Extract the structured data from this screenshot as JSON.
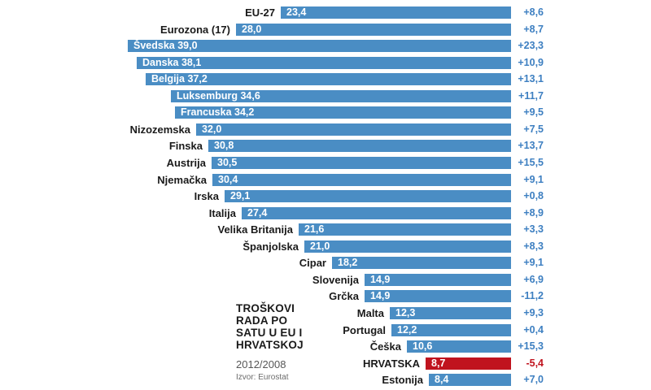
{
  "title_block": {
    "title_lines": [
      "TROŠKOVI",
      "RADA PO",
      "SATU U EU I",
      "HRVATSKOJ"
    ],
    "period": "2012/2008",
    "source": "Izvor: Eurostat"
  },
  "colors": {
    "bar_blue": "#4a8dc4",
    "bar_red": "#c0131e",
    "change_blue": "#3d7fc1",
    "change_red": "#c0131e",
    "label_dark": "#1a1a1a"
  },
  "chart_data": {
    "type": "bar",
    "orientation": "horizontal-right-anchored",
    "title": "TROŠKOVI RADA PO SATU U EU I HRVATSKOJ",
    "period": "2012/2008",
    "source": "Izvor: Eurostat",
    "value_axis_range": [
      0,
      39.0
    ],
    "grid": false,
    "legend": false,
    "rows": [
      {
        "label": "EU-27",
        "value": 23.4,
        "value_text": "23,4",
        "change": 8.6,
        "change_text": "+8,6",
        "label_inside": false,
        "highlight": false
      },
      {
        "label": "Eurozona (17)",
        "value": 28.0,
        "value_text": "28,0",
        "change": 8.7,
        "change_text": "+8,7",
        "label_inside": false,
        "highlight": false
      },
      {
        "label": "Švedska",
        "value": 39.0,
        "value_text": "39,0",
        "change": 23.3,
        "change_text": "+23,3",
        "label_inside": true,
        "highlight": false
      },
      {
        "label": "Danska",
        "value": 38.1,
        "value_text": "38,1",
        "change": 10.9,
        "change_text": "+10,9",
        "label_inside": true,
        "highlight": false
      },
      {
        "label": "Belgija",
        "value": 37.2,
        "value_text": "37,2",
        "change": 13.1,
        "change_text": "+13,1",
        "label_inside": true,
        "highlight": false
      },
      {
        "label": "Luksemburg",
        "value": 34.6,
        "value_text": "34,6",
        "change": 11.7,
        "change_text": "+11,7",
        "label_inside": true,
        "highlight": false
      },
      {
        "label": "Francuska",
        "value": 34.2,
        "value_text": "34,2",
        "change": 9.5,
        "change_text": "+9,5",
        "label_inside": true,
        "highlight": false
      },
      {
        "label": "Nizozemska",
        "value": 32.0,
        "value_text": "32,0",
        "change": 7.5,
        "change_text": "+7,5",
        "label_inside": false,
        "highlight": false
      },
      {
        "label": "Finska",
        "value": 30.8,
        "value_text": "30,8",
        "change": 13.7,
        "change_text": "+13,7",
        "label_inside": false,
        "highlight": false
      },
      {
        "label": "Austrija",
        "value": 30.5,
        "value_text": "30,5",
        "change": 15.5,
        "change_text": "+15,5",
        "label_inside": false,
        "highlight": false
      },
      {
        "label": "Njemačka",
        "value": 30.4,
        "value_text": "30,4",
        "change": 9.1,
        "change_text": "+9,1",
        "label_inside": false,
        "highlight": false
      },
      {
        "label": "Irska",
        "value": 29.1,
        "value_text": "29,1",
        "change": 0.8,
        "change_text": "+0,8",
        "label_inside": false,
        "highlight": false
      },
      {
        "label": "Italija",
        "value": 27.4,
        "value_text": "27,4",
        "change": 8.9,
        "change_text": "+8,9",
        "label_inside": false,
        "highlight": false
      },
      {
        "label": "Velika Britanija",
        "value": 21.6,
        "value_text": "21,6",
        "change": 3.3,
        "change_text": "+3,3",
        "label_inside": false,
        "highlight": false
      },
      {
        "label": "Španjolska",
        "value": 21.0,
        "value_text": "21,0",
        "change": 8.3,
        "change_text": "+8,3",
        "label_inside": false,
        "highlight": false
      },
      {
        "label": "Cipar",
        "value": 18.2,
        "value_text": "18,2",
        "change": 9.1,
        "change_text": "+9,1",
        "label_inside": false,
        "highlight": false
      },
      {
        "label": "Slovenija",
        "value": 14.9,
        "value_text": "14,9",
        "change": 6.9,
        "change_text": "+6,9",
        "label_inside": false,
        "highlight": false
      },
      {
        "label": "Grčka",
        "value": 14.9,
        "value_text": "14,9",
        "change": -11.2,
        "change_text": "-11,2",
        "label_inside": false,
        "highlight": false
      },
      {
        "label": "Malta",
        "value": 12.3,
        "value_text": "12,3",
        "change": 9.3,
        "change_text": "+9,3",
        "label_inside": false,
        "highlight": false
      },
      {
        "label": "Portugal",
        "value": 12.2,
        "value_text": "12,2",
        "change": 0.4,
        "change_text": "+0,4",
        "label_inside": false,
        "highlight": false
      },
      {
        "label": "Češka",
        "value": 10.6,
        "value_text": "10,6",
        "change": 15.3,
        "change_text": "+15,3",
        "label_inside": false,
        "highlight": false
      },
      {
        "label": "HRVATSKA",
        "value": 8.7,
        "value_text": "8,7",
        "change": -5.4,
        "change_text": "-5,4",
        "label_inside": false,
        "highlight": true
      },
      {
        "label": "Estonija",
        "value": 8.4,
        "value_text": "8,4",
        "change": 7.0,
        "change_text": "+7,0",
        "label_inside": false,
        "highlight": false
      }
    ]
  }
}
